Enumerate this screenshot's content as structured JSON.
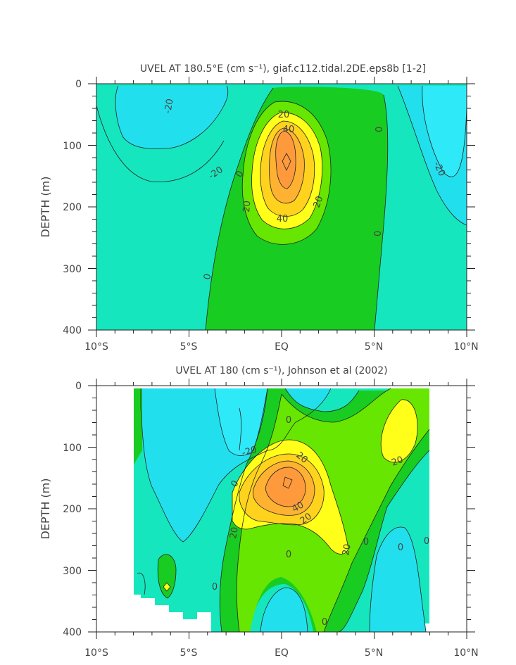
{
  "chart_data": [
    {
      "type": "contour",
      "title": "UVEL AT 180.5°E (cm s⁻¹), giaf.c112.tidal.2DE.eps8b [1-2]",
      "ylabel": "DEPTH (m)",
      "xlabel": "",
      "xlim": [
        -10,
        10
      ],
      "ylim": [
        0,
        400
      ],
      "y_inverted": true,
      "x_ticks": [
        "10°S",
        "5°S",
        "EQ",
        "5°N",
        "10°N"
      ],
      "y_ticks": [
        "0",
        "100",
        "200",
        "300",
        "400"
      ],
      "contour_interval": 10,
      "contour_labels": [
        "-20",
        "-20",
        "-20",
        "0",
        "0",
        "0",
        "0",
        "20",
        "20",
        "20",
        "40",
        "40"
      ],
      "undercurrent_core": {
        "lat": 0.3,
        "depth": 125,
        "max": 60
      }
    },
    {
      "type": "contour",
      "title": "UVEL AT 180 (cm s⁻¹), Johnson et al (2002)",
      "ylabel": "DEPTH (m)",
      "xlabel": "",
      "xlim": [
        -10,
        10
      ],
      "ylim": [
        0,
        400
      ],
      "y_inverted": true,
      "x_ticks": [
        "10°S",
        "5°S",
        "EQ",
        "5°N",
        "10°N"
      ],
      "y_ticks": [
        "0",
        "100",
        "200",
        "300",
        "400"
      ],
      "contour_interval": 10,
      "contour_labels": [
        "-20",
        "0",
        "0",
        "0",
        "0",
        "0",
        "0",
        "0",
        "0",
        "20",
        "20",
        "20",
        "20",
        "20",
        "20",
        "20",
        "40"
      ],
      "undercurrent_core": {
        "lat": 0.4,
        "depth": 170,
        "max": 50
      }
    }
  ]
}
